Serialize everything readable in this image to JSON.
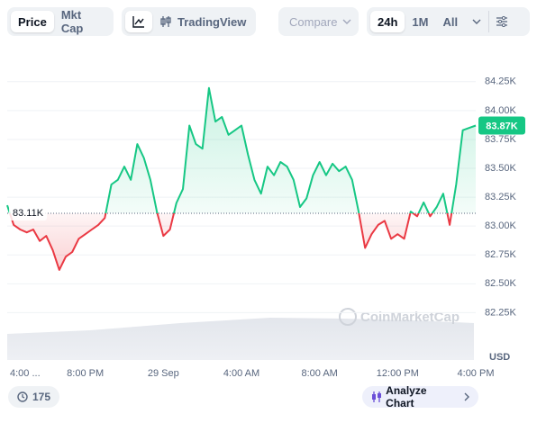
{
  "toolbar": {
    "tabs": [
      "Price",
      "Mkt Cap"
    ],
    "view": "TradingView",
    "compare": "Compare",
    "ranges": [
      "24h",
      "1M",
      "All"
    ]
  },
  "chart_data": {
    "type": "line",
    "title": null,
    "categories": [
      "4:00 ...",
      null,
      null,
      null,
      null,
      null,
      null,
      null,
      null,
      null,
      null,
      null,
      "8:00 PM",
      null,
      null,
      null,
      null,
      null,
      null,
      null,
      null,
      null,
      null,
      null,
      "29 Sep",
      null,
      null,
      null,
      null,
      null,
      null,
      null,
      null,
      null,
      null,
      null,
      "4:00 AM",
      null,
      null,
      null,
      null,
      null,
      null,
      null,
      null,
      null,
      null,
      null,
      "8:00 AM",
      null,
      null,
      null,
      null,
      null,
      null,
      null,
      null,
      null,
      null,
      null,
      "12:00 PM",
      null,
      null,
      null,
      null,
      null,
      null,
      null,
      null,
      null,
      null,
      null,
      "4:00 PM"
    ],
    "values": [
      83180,
      83010,
      82970,
      82945,
      82970,
      82870,
      82915,
      82790,
      82620,
      82735,
      82775,
      82890,
      82930,
      82970,
      83010,
      83070,
      83360,
      83400,
      83515,
      83400,
      83710,
      83590,
      83400,
      83125,
      82915,
      82970,
      83200,
      83320,
      83870,
      83710,
      83670,
      84195,
      83905,
      83945,
      83790,
      83830,
      83870,
      83620,
      83400,
      83280,
      83515,
      83440,
      83555,
      83515,
      83400,
      83165,
      83240,
      83440,
      83555,
      83440,
      83540,
      83475,
      83515,
      83400,
      83125,
      82810,
      82930,
      83010,
      83045,
      82890,
      82930,
      82890,
      83125,
      83085,
      83205,
      83085,
      83165,
      83280,
      83010,
      83360,
      83830,
      83850,
      83870
    ],
    "colors": {
      "up": "#16c784",
      "down": "#ea3943"
    },
    "ylim": [
      81840,
      84490
    ],
    "yticks": [
      {
        "value": 82250,
        "label": "82.25K"
      },
      {
        "value": 82500,
        "label": "82.50K"
      },
      {
        "value": 82750,
        "label": "82.75K"
      },
      {
        "value": 83000,
        "label": "83.00K"
      },
      {
        "value": 83250,
        "label": "83.25K"
      },
      {
        "value": 83500,
        "label": "83.50K"
      },
      {
        "value": 83750,
        "label": "83.75K"
      },
      {
        "value": 84000,
        "label": "84.00K"
      },
      {
        "value": 84250,
        "label": "84.25K"
      }
    ],
    "y_axis_unit": "USD",
    "grid": true,
    "baseline": {
      "value": 83110,
      "label": "83.11K"
    },
    "last_label": {
      "value": 83870,
      "label": "83.87K"
    },
    "watermark": "CoinMarketCap",
    "footer": {
      "badge": "175",
      "button": "Analyze Chart"
    }
  }
}
